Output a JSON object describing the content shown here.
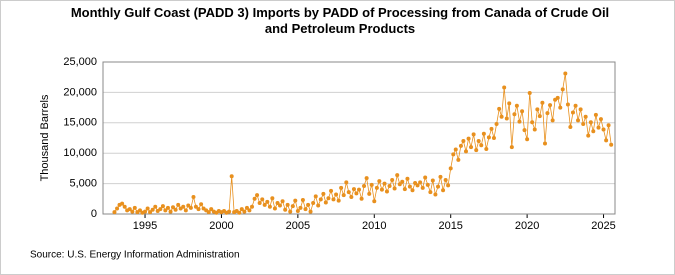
{
  "chart_data": {
    "type": "line",
    "title": "Monthly Gulf Coast (PADD 3) Imports by PADD of Processing from Canada of Crude Oil and Petroleum Products",
    "y_label": "Thousand Barrels",
    "source": "Source: U.S. Energy Information Administration",
    "xlim": [
      1992.25,
      2025.75
    ],
    "xticks": [
      1995,
      2000,
      2005,
      2010,
      2015,
      2020,
      2025
    ],
    "ylim": [
      0,
      25000
    ],
    "yticks": [
      0,
      {
        "value": 5000,
        "label": "5,000"
      },
      {
        "value": 10000,
        "label": "10,000"
      },
      {
        "value": 15000,
        "label": "15,000"
      },
      {
        "value": 20000,
        "label": "20,000"
      },
      {
        "value": 25000,
        "label": "25,000"
      }
    ],
    "grid": true,
    "series": [
      {
        "color": "#e8901e",
        "x": [
          1993.0,
          1993.17,
          1993.33,
          1993.5,
          1993.67,
          1993.83,
          1994.0,
          1994.17,
          1994.33,
          1994.5,
          1994.67,
          1994.83,
          1995.0,
          1995.17,
          1995.33,
          1995.5,
          1995.67,
          1995.83,
          1996.0,
          1996.17,
          1996.33,
          1996.5,
          1996.67,
          1996.83,
          1997.0,
          1997.17,
          1997.33,
          1997.5,
          1997.67,
          1997.83,
          1998.0,
          1998.17,
          1998.33,
          1998.5,
          1998.67,
          1998.83,
          1999.0,
          1999.17,
          1999.33,
          1999.5,
          1999.67,
          1999.83,
          2000.0,
          2000.17,
          2000.33,
          2000.5,
          2000.67,
          2000.83,
          2001.0,
          2001.17,
          2001.33,
          2001.5,
          2001.67,
          2001.83,
          2002.0,
          2002.17,
          2002.33,
          2002.5,
          2002.67,
          2002.83,
          2003.0,
          2003.17,
          2003.33,
          2003.5,
          2003.67,
          2003.83,
          2004.0,
          2004.17,
          2004.33,
          2004.5,
          2004.67,
          2004.83,
          2005.0,
          2005.17,
          2005.33,
          2005.5,
          2005.67,
          2005.83,
          2006.0,
          2006.17,
          2006.33,
          2006.5,
          2006.67,
          2006.83,
          2007.0,
          2007.17,
          2007.33,
          2007.5,
          2007.67,
          2007.83,
          2008.0,
          2008.17,
          2008.33,
          2008.5,
          2008.67,
          2008.83,
          2009.0,
          2009.17,
          2009.33,
          2009.5,
          2009.67,
          2009.83,
          2010.0,
          2010.17,
          2010.33,
          2010.5,
          2010.67,
          2010.83,
          2011.0,
          2011.17,
          2011.33,
          2011.5,
          2011.67,
          2011.83,
          2012.0,
          2012.17,
          2012.33,
          2012.5,
          2012.67,
          2012.83,
          2013.0,
          2013.17,
          2013.33,
          2013.5,
          2013.67,
          2013.83,
          2014.0,
          2014.17,
          2014.33,
          2014.5,
          2014.67,
          2014.83,
          2015.0,
          2015.17,
          2015.33,
          2015.5,
          2015.67,
          2015.83,
          2016.0,
          2016.17,
          2016.33,
          2016.5,
          2016.67,
          2016.83,
          2017.0,
          2017.17,
          2017.33,
          2017.5,
          2017.67,
          2017.83,
          2018.0,
          2018.17,
          2018.33,
          2018.5,
          2018.67,
          2018.83,
          2019.0,
          2019.17,
          2019.33,
          2019.5,
          2019.67,
          2019.83,
          2020.0,
          2020.17,
          2020.33,
          2020.5,
          2020.67,
          2020.83,
          2021.0,
          2021.17,
          2021.33,
          2021.5,
          2021.67,
          2021.83,
          2022.0,
          2022.17,
          2022.33,
          2022.5,
          2022.67,
          2022.83,
          2023.0,
          2023.17,
          2023.33,
          2023.5,
          2023.67,
          2023.83,
          2024.0,
          2024.17,
          2024.33,
          2024.5,
          2024.67,
          2024.83,
          2025.0,
          2025.17,
          2025.33,
          2025.5
        ],
        "values": [
          300,
          900,
          1500,
          1700,
          1200,
          600,
          800,
          400,
          1000,
          300,
          600,
          200,
          400,
          900,
          300,
          700,
          1200,
          500,
          800,
          1300,
          600,
          1000,
          400,
          1100,
          700,
          1500,
          900,
          1200,
          600,
          1400,
          1000,
          2800,
          1200,
          800,
          1600,
          900,
          600,
          300,
          800,
          400,
          200,
          500,
          300,
          500,
          200,
          400,
          6200,
          300,
          500,
          200,
          800,
          400,
          1000,
          600,
          1200,
          2500,
          3100,
          1800,
          2400,
          1500,
          2000,
          1200,
          2600,
          900,
          1800,
          1400,
          2100,
          700,
          1500,
          400,
          1300,
          2200,
          500,
          1000,
          2300,
          800,
          1500,
          400,
          1800,
          2900,
          1400,
          2400,
          3300,
          1900,
          2600,
          3800,
          2400,
          3200,
          2200,
          4300,
          3100,
          5200,
          3600,
          2800,
          4100,
          3400,
          4000,
          2500,
          4600,
          5900,
          3300,
          4800,
          2100,
          4300,
          5400,
          4000,
          5000,
          3700,
          4600,
          5600,
          4200,
          6400,
          4900,
          5300,
          4100,
          5800,
          4500,
          3900,
          5100,
          4700,
          5200,
          4300,
          6000,
          4800,
          3600,
          5500,
          3200,
          4500,
          6100,
          3900,
          5600,
          4700,
          7500,
          9800,
          10600,
          8900,
          11200,
          12000,
          10300,
          12400,
          11000,
          13100,
          10500,
          12000,
          11300,
          13200,
          10700,
          12600,
          14000,
          12500,
          14800,
          17300,
          16000,
          20800,
          15700,
          18200,
          11000,
          16400,
          17800,
          15200,
          16900,
          13800,
          12300,
          19900,
          15100,
          13900,
          17200,
          16100,
          18300,
          11600,
          16600,
          17900,
          15400,
          18800,
          19100,
          17500,
          20500,
          23100,
          18000,
          14300,
          16700,
          17800,
          15400,
          17200,
          14800,
          16000,
          12900,
          15100,
          13600,
          16300,
          14200,
          15600,
          13900,
          12100,
          14600,
          11400
        ]
      }
    ]
  }
}
